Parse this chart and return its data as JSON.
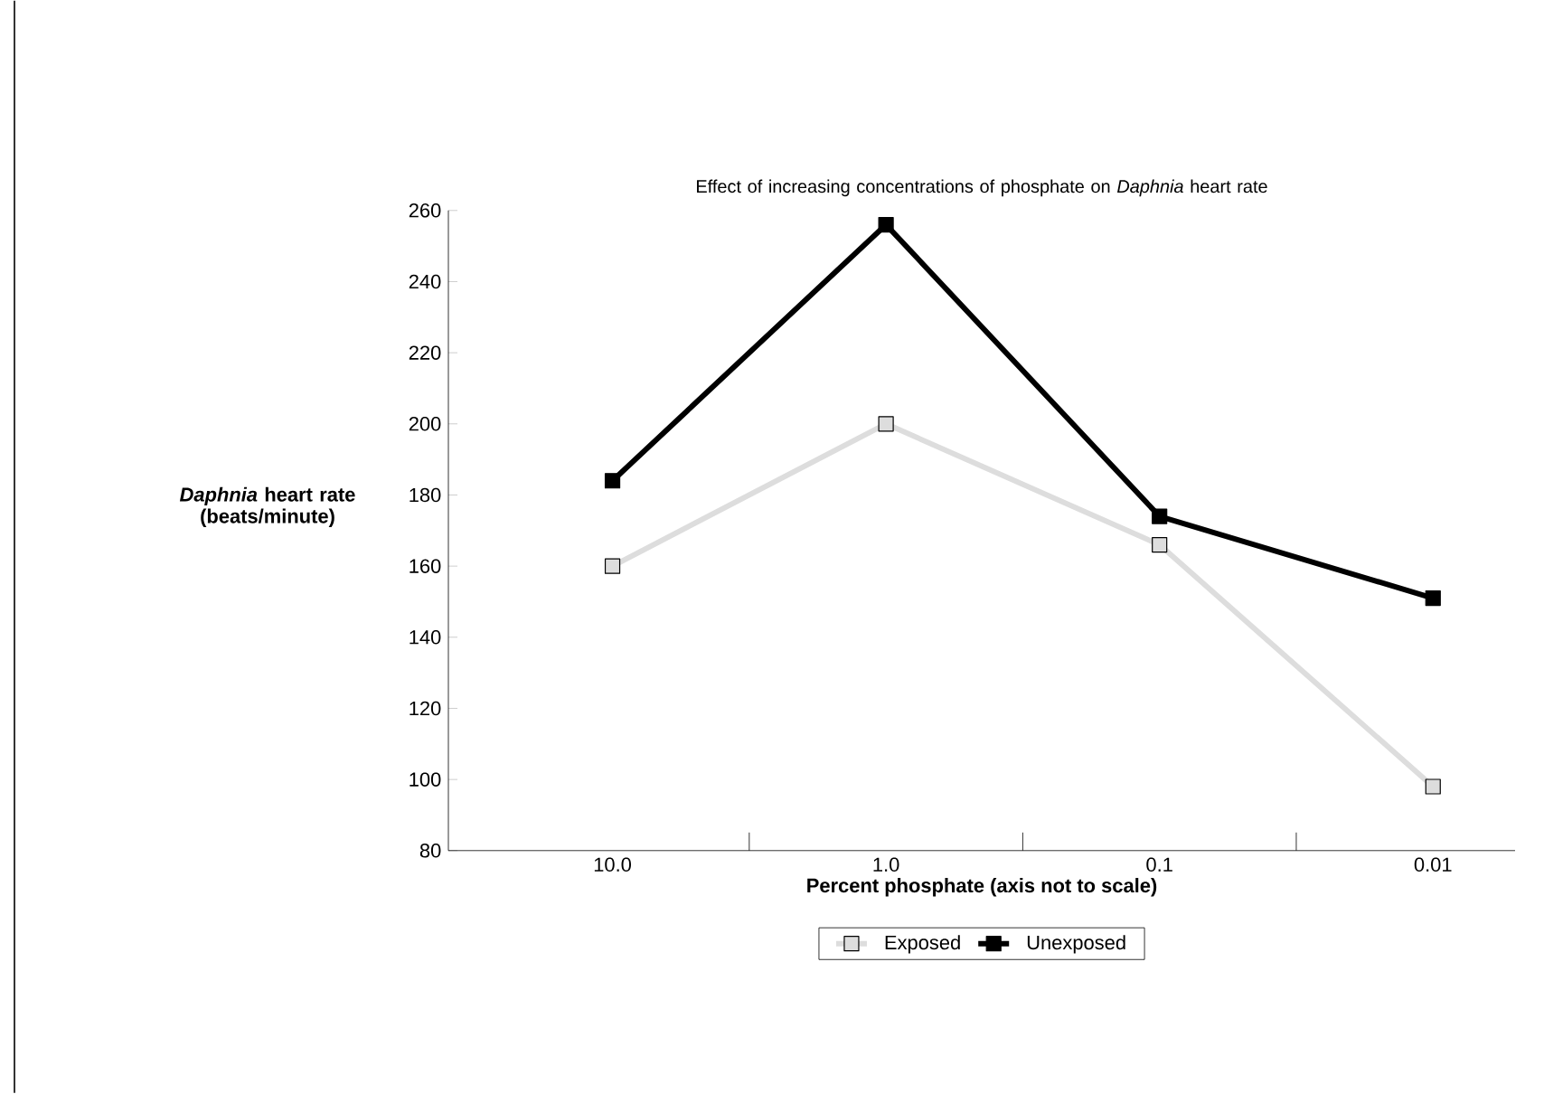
{
  "chart_data": {
    "type": "line",
    "title": "Effect of increasing concentrations of phosphate on *Daphnia* heart rate",
    "xlabel": "Percent phosphate (axis not to scale)",
    "ylabel": "*Daphnia* heart rate (beats/minute)",
    "categories": [
      "10.0",
      "1.0",
      "0.1",
      "0.01"
    ],
    "series": [
      {
        "name": "Exposed",
        "color": "#dddddd",
        "values": [
          160,
          200,
          166,
          98
        ]
      },
      {
        "name": "Unexposed",
        "color": "#000000",
        "values": [
          184,
          256,
          174,
          151
        ]
      }
    ],
    "ylim": [
      80,
      260
    ],
    "yticks": [
      80,
      100,
      120,
      140,
      160,
      180,
      200,
      220,
      240,
      260
    ],
    "marker": "square",
    "line_style": "solid",
    "legend": "bottom",
    "grid": false
  }
}
